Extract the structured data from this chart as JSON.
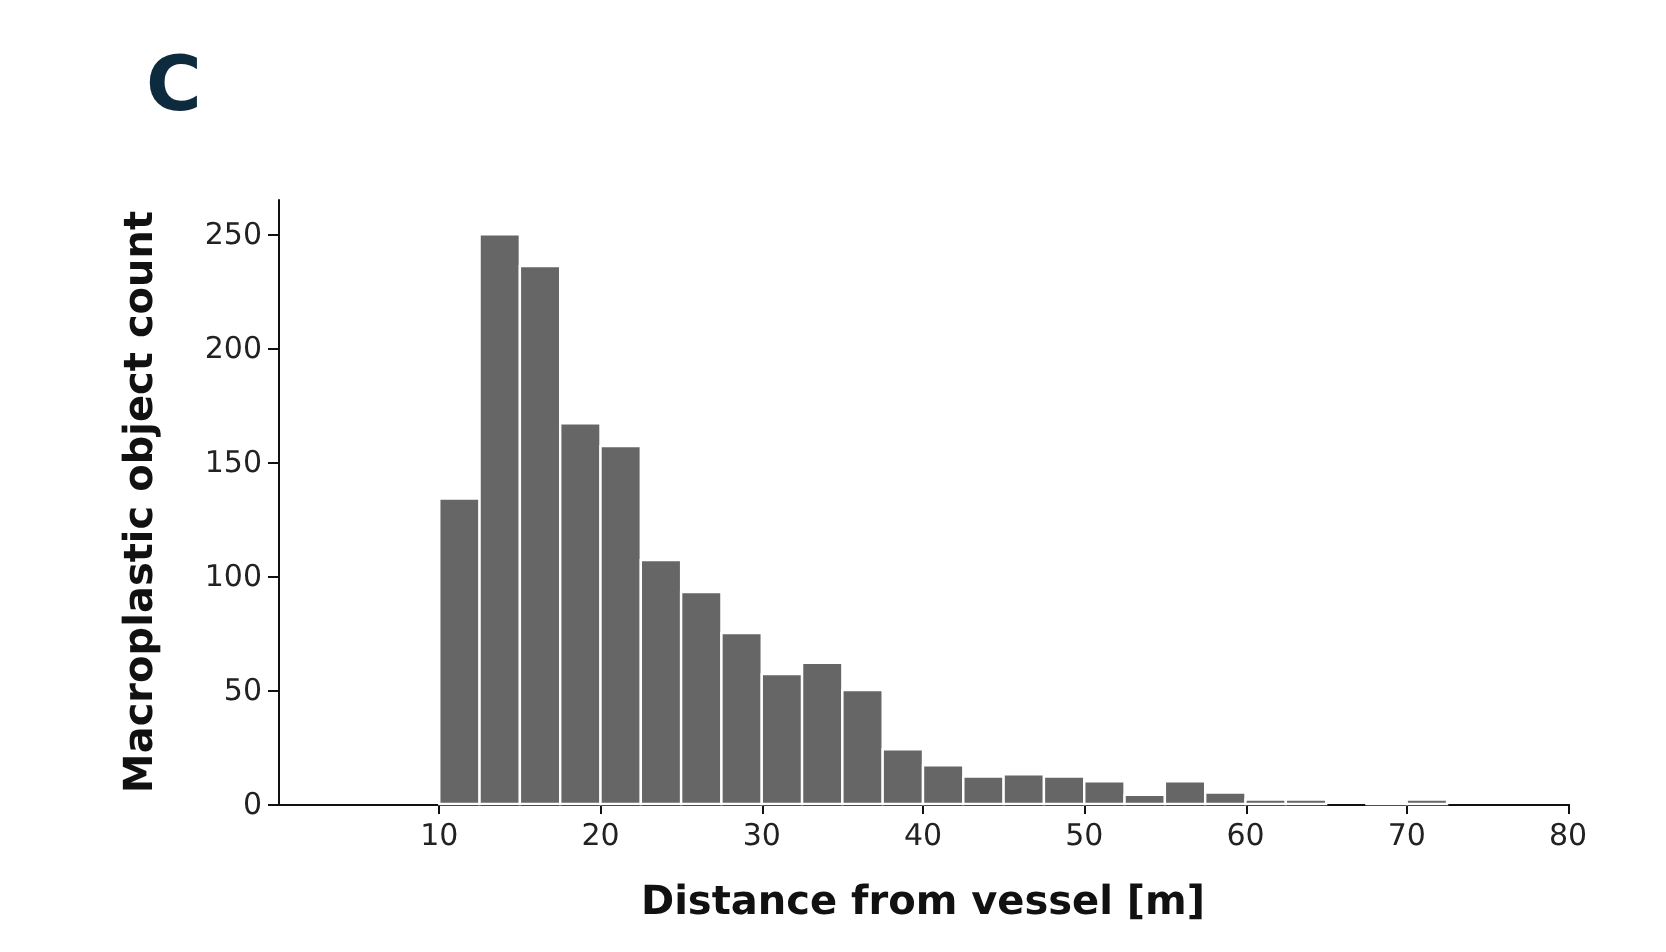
{
  "chart_data": {
    "type": "histogram",
    "title": "C",
    "xlabel": "Distance from vessel [m]",
    "ylabel": "Macroplastic object count",
    "bins": [
      10,
      12.5,
      15,
      17.5,
      20,
      22.5,
      25,
      27.5,
      30,
      32.5,
      35,
      37.5,
      40,
      42.5,
      45,
      47.5,
      50,
      52.5,
      55,
      57.5,
      60,
      62.5,
      65,
      67.5,
      70,
      72.5
    ],
    "values": [
      134,
      250,
      236,
      167,
      157,
      107,
      93,
      75,
      57,
      62,
      50,
      24,
      17,
      12,
      13,
      12,
      10,
      4,
      10,
      5,
      2,
      2,
      0,
      1,
      2
    ],
    "color": "#666666",
    "xlim": [
      0,
      80
    ],
    "xticks": [
      10,
      20,
      30,
      40,
      50,
      60,
      70,
      80
    ],
    "ylim": [
      0,
      265
    ],
    "yticks": [
      0,
      50,
      100,
      150,
      200,
      250
    ],
    "grid": false
  }
}
